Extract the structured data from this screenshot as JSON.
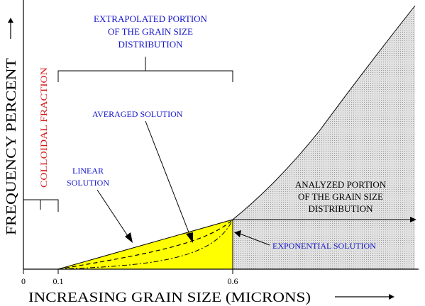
{
  "labels": {
    "y_axis": "FREQUENCY PERCENT",
    "y_arrow": "→",
    "x_axis": "INCREASING GRAIN SIZE (MICRONS)",
    "tick_0": "0",
    "tick_01": "0.1",
    "tick_06": "0.6",
    "extrapolated_line1": "EXTRAPOLATED PORTION",
    "extrapolated_line2": "OF THE GRAIN SIZE",
    "extrapolated_line3": "DISTRIBUTION",
    "colloidal": "COLLOIDAL FRACTION",
    "averaged": "AVERAGED SOLUTION",
    "linear_line1": "LINEAR",
    "linear_line2": "SOLUTION",
    "analyzed_line1": "ANALYZED PORTION",
    "analyzed_line2": "OF THE GRAIN SIZE",
    "analyzed_line3": "DISTRIBUTION",
    "exponential": "EXPONENTIAL SOLUTION"
  },
  "colors": {
    "extrapolated_fill": "#ffff00",
    "analyzed_fill": "#dcdcdc",
    "label_blue": "#1515cc",
    "label_red": "#d61a1a"
  }
}
